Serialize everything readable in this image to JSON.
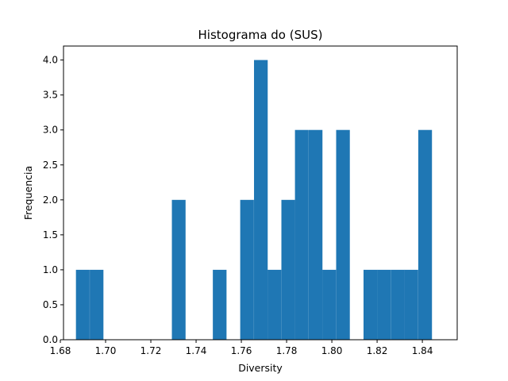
{
  "chart_data": {
    "type": "bar",
    "title": "Histograma do (SUS)",
    "xlabel": "Diversity",
    "ylabel": "Frequencia",
    "xlim": [
      1.6814,
      1.8554
    ],
    "ylim": [
      0,
      4.2
    ],
    "grid": false,
    "legend": "none",
    "bar_color": "#1f77b4",
    "bin_width": 0.00605,
    "x_ticks": [
      1.68,
      1.7,
      1.72,
      1.74,
      1.76,
      1.78,
      1.8,
      1.82,
      1.84
    ],
    "x_tick_labels": [
      "1.68",
      "1.70",
      "1.72",
      "1.74",
      "1.76",
      "1.78",
      "1.80",
      "1.82",
      "1.84"
    ],
    "y_ticks": [
      0,
      0.5,
      1,
      1.5,
      2,
      2.5,
      3,
      3.5,
      4
    ],
    "y_tick_labels": [
      "0.0",
      "0.5",
      "1.0",
      "1.5",
      "2.0",
      "2.5",
      "3.0",
      "3.5",
      "4.0"
    ],
    "bins": [
      {
        "x0": 1.6869,
        "count": 1
      },
      {
        "x0": 1.693,
        "count": 1
      },
      {
        "x0": 1.699,
        "count": 0
      },
      {
        "x0": 1.7051,
        "count": 0
      },
      {
        "x0": 1.7111,
        "count": 0
      },
      {
        "x0": 1.7172,
        "count": 0
      },
      {
        "x0": 1.7232,
        "count": 0
      },
      {
        "x0": 1.7293,
        "count": 2
      },
      {
        "x0": 1.7353,
        "count": 0
      },
      {
        "x0": 1.7414,
        "count": 0
      },
      {
        "x0": 1.7474,
        "count": 1
      },
      {
        "x0": 1.7535,
        "count": 0
      },
      {
        "x0": 1.7595,
        "count": 2
      },
      {
        "x0": 1.7656,
        "count": 4
      },
      {
        "x0": 1.7716,
        "count": 1
      },
      {
        "x0": 1.7777,
        "count": 2
      },
      {
        "x0": 1.7837,
        "count": 3
      },
      {
        "x0": 1.7898,
        "count": 3
      },
      {
        "x0": 1.7958,
        "count": 1
      },
      {
        "x0": 1.8019,
        "count": 3
      },
      {
        "x0": 1.8079,
        "count": 0
      },
      {
        "x0": 1.814,
        "count": 1
      },
      {
        "x0": 1.82,
        "count": 1
      },
      {
        "x0": 1.8261,
        "count": 1
      },
      {
        "x0": 1.8321,
        "count": 1
      },
      {
        "x0": 1.8382,
        "count": 3
      }
    ]
  }
}
